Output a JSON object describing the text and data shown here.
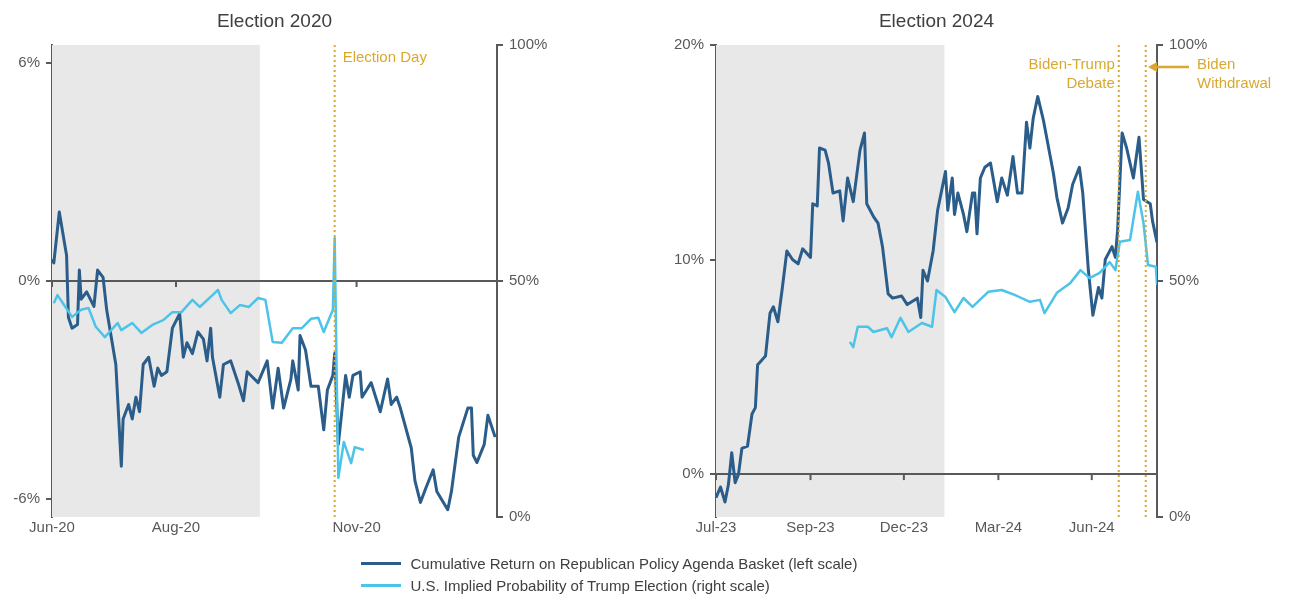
{
  "chart_data": [
    {
      "type": "line",
      "title": "Election 2020",
      "legend": "bottom",
      "marker": "none",
      "line_style": "solid",
      "xlim": [
        "2020-06-01",
        "2021-01-31"
      ],
      "xticks": [
        {
          "value": "2020-06-01",
          "label": "Jun-20"
        },
        {
          "value": "2020-08-08",
          "label": "Aug-20"
        },
        {
          "value": "2020-11-15",
          "label": "Nov-20"
        }
      ],
      "ylim": [
        -6.5,
        6.5
      ],
      "yticks": [
        {
          "value": -6,
          "label": "-6%"
        },
        {
          "value": 0,
          "label": "0%"
        },
        {
          "value": 6,
          "label": "6%"
        }
      ],
      "y2lim": [
        0,
        100
      ],
      "y2ticks": [
        {
          "value": 0,
          "label": "0%"
        },
        {
          "value": 50,
          "label": "50%"
        },
        {
          "value": 100,
          "label": "100%"
        }
      ],
      "bands": [
        {
          "axis": "x",
          "from": "2020-06-01",
          "to": "2020-09-23",
          "color": "#e8e8e8"
        }
      ],
      "ref_lines": [
        {
          "axis": "x",
          "value": "2020-11-03",
          "label": "Election Day",
          "color": "#d9a830",
          "line_style": "dotted"
        }
      ],
      "series": [
        {
          "name": "Cumulative Return on Republican Policy Agenda Basket (left scale)",
          "color": "#2b5d8a",
          "axis": "y",
          "x": [
            "2020-06-01",
            "2020-06-02",
            "2020-06-05",
            "2020-06-09",
            "2020-06-10",
            "2020-06-12",
            "2020-06-15",
            "2020-06-16",
            "2020-06-17",
            "2020-06-20",
            "2020-06-24",
            "2020-06-26",
            "2020-06-29",
            "2020-07-01",
            "2020-07-06",
            "2020-07-09",
            "2020-07-10",
            "2020-07-13",
            "2020-07-15",
            "2020-07-17",
            "2020-07-19",
            "2020-07-21",
            "2020-07-24",
            "2020-07-27",
            "2020-07-29",
            "2020-07-31",
            "2020-08-03",
            "2020-08-06",
            "2020-08-10",
            "2020-08-12",
            "2020-08-14",
            "2020-08-17",
            "2020-08-20",
            "2020-08-23",
            "2020-08-25",
            "2020-08-27",
            "2020-08-28",
            "2020-09-01",
            "2020-09-03",
            "2020-09-07",
            "2020-09-11",
            "2020-09-14",
            "2020-09-16",
            "2020-09-22",
            "2020-09-27",
            "2020-09-30",
            "2020-10-03",
            "2020-10-06",
            "2020-10-10",
            "2020-10-11",
            "2020-10-14",
            "2020-10-15",
            "2020-10-18",
            "2020-10-21",
            "2020-10-25",
            "2020-10-28",
            "2020-10-30",
            "2020-11-02",
            "2020-11-03",
            "2020-11-05",
            "2020-11-09",
            "2020-11-11",
            "2020-11-13",
            "2020-11-17",
            "2020-11-18",
            "2020-11-23",
            "2020-11-28",
            "2020-12-02",
            "2020-12-04",
            "2020-12-07",
            "2020-12-09",
            "2020-12-15",
            "2020-12-17",
            "2020-12-20",
            "2020-12-23",
            "2020-12-27",
            "2020-12-29",
            "2021-01-04",
            "2021-01-06",
            "2021-01-10",
            "2021-01-15",
            "2021-01-17",
            "2021-01-18",
            "2021-01-20",
            "2021-01-24",
            "2021-01-26",
            "2021-01-30"
          ],
          "values": [
            0.6,
            0.5,
            1.9,
            0.7,
            -1.0,
            -1.3,
            -1.2,
            0.3,
            -0.5,
            -0.3,
            -0.7,
            0.3,
            0.1,
            -0.8,
            -2.3,
            -5.1,
            -3.8,
            -3.4,
            -3.8,
            -3.2,
            -3.6,
            -2.3,
            -2.1,
            -2.9,
            -2.4,
            -2.6,
            -2.5,
            -1.3,
            -0.9,
            -2.1,
            -1.7,
            -2.0,
            -1.4,
            -1.6,
            -2.2,
            -1.3,
            -2.1,
            -3.2,
            -2.3,
            -2.2,
            -2.8,
            -3.3,
            -2.5,
            -2.8,
            -2.2,
            -3.5,
            -2.4,
            -3.5,
            -2.7,
            -2.2,
            -3.0,
            -1.5,
            -1.9,
            -2.9,
            -2.9,
            -4.1,
            -3.0,
            -2.6,
            -2.0,
            -4.5,
            -2.6,
            -3.2,
            -2.6,
            -2.5,
            -3.2,
            -2.8,
            -3.6,
            -2.7,
            -3.4,
            -3.2,
            -3.5,
            -4.6,
            -5.5,
            -6.1,
            -5.7,
            -5.2,
            -5.8,
            -6.3,
            -5.8,
            -4.3,
            -3.5,
            -3.5,
            -4.8,
            -5.0,
            -4.5,
            -3.7,
            -4.3
          ]
        },
        {
          "name": "U.S. Implied Probability of Trump Election (right scale)",
          "color": "#4cc3e8",
          "axis": "y2",
          "x": [
            "2020-06-02",
            "2020-06-04",
            "2020-06-07",
            "2020-06-12",
            "2020-06-17",
            "2020-06-21",
            "2020-06-25",
            "2020-06-30",
            "2020-07-07",
            "2020-07-09",
            "2020-07-15",
            "2020-07-20",
            "2020-07-26",
            "2020-08-01",
            "2020-08-06",
            "2020-08-11",
            "2020-08-17",
            "2020-08-21",
            "2020-08-28",
            "2020-08-31",
            "2020-09-02",
            "2020-09-07",
            "2020-09-12",
            "2020-09-17",
            "2020-09-22",
            "2020-09-26",
            "2020-09-30",
            "2020-10-05",
            "2020-10-11",
            "2020-10-16",
            "2020-10-21",
            "2020-10-25",
            "2020-10-28",
            "2020-11-02",
            "2020-11-03",
            "2020-11-04",
            "2020-11-05",
            "2020-11-08",
            "2020-11-12",
            "2020-11-14",
            "2020-11-19"
          ],
          "values": [
            45.3,
            47.0,
            45.3,
            42.4,
            43.9,
            44.3,
            40.3,
            38.1,
            41.1,
            39.6,
            41.1,
            39.0,
            40.7,
            41.7,
            43.4,
            43.4,
            46.0,
            44.5,
            47.0,
            48.1,
            46.0,
            43.2,
            44.9,
            44.5,
            46.4,
            46.0,
            37.1,
            36.9,
            40.0,
            40.0,
            42.0,
            42.2,
            39.2,
            43.9,
            59.1,
            32.6,
            8.3,
            15.9,
            11.4,
            14.8,
            14.2
          ]
        }
      ]
    },
    {
      "type": "line",
      "title": "Election 2024",
      "marker": "none",
      "line_style": "solid",
      "xlim": [
        "2023-07-05",
        "2024-07-31"
      ],
      "xticks": [
        {
          "value": "2023-07-05",
          "label": "Jul-23"
        },
        {
          "value": "2023-09-27",
          "label": "Sep-23"
        },
        {
          "value": "2023-12-19",
          "label": "Dec-23"
        },
        {
          "value": "2024-03-12",
          "label": "Mar-24"
        },
        {
          "value": "2024-06-03",
          "label": "Jun-24"
        }
      ],
      "ylim": [
        -2,
        20
      ],
      "yticks": [
        {
          "value": 0,
          "label": "0%"
        },
        {
          "value": 10,
          "label": "10%"
        },
        {
          "value": 20,
          "label": "20%"
        }
      ],
      "y2lim": [
        0,
        100
      ],
      "y2ticks": [
        {
          "value": 0,
          "label": "0%"
        },
        {
          "value": 50,
          "label": "50%"
        },
        {
          "value": 100,
          "label": "100%"
        }
      ],
      "bands": [
        {
          "axis": "x",
          "from": "2023-07-05",
          "to": "2024-01-24",
          "color": "#e8e8e8"
        }
      ],
      "ref_lines": [
        {
          "axis": "x",
          "value": "2024-06-27",
          "label": "Biden-Trump Debate",
          "color": "#d9a830",
          "line_style": "dotted"
        },
        {
          "axis": "x",
          "value": "2024-07-21",
          "label": "Biden Withdrawal",
          "color": "#d9a830",
          "line_style": "dotted"
        }
      ],
      "series": [
        {
          "color": "#2b5d8a",
          "axis": "y",
          "x": [
            "2023-07-05",
            "2023-07-09",
            "2023-07-13",
            "2023-07-16",
            "2023-07-19",
            "2023-07-22",
            "2023-07-25",
            "2023-07-28",
            "2023-08-02",
            "2023-08-06",
            "2023-08-09",
            "2023-08-11",
            "2023-08-18",
            "2023-08-22",
            "2023-08-25",
            "2023-08-29",
            "2023-09-02",
            "2023-09-06",
            "2023-09-11",
            "2023-09-16",
            "2023-09-20",
            "2023-09-27",
            "2023-09-29",
            "2023-10-03",
            "2023-10-05",
            "2023-10-10",
            "2023-10-13",
            "2023-10-17",
            "2023-10-23",
            "2023-10-26",
            "2023-10-30",
            "2023-11-04",
            "2023-11-10",
            "2023-11-14",
            "2023-11-16",
            "2023-11-22",
            "2023-11-26",
            "2023-11-30",
            "2023-12-05",
            "2023-12-09",
            "2023-12-17",
            "2023-12-22",
            "2023-12-31",
            "2024-01-03",
            "2024-01-05",
            "2024-01-09",
            "2024-01-14",
            "2024-01-18",
            "2024-01-25",
            "2024-01-27",
            "2024-01-31",
            "2024-02-02",
            "2024-02-05",
            "2024-02-10",
            "2024-02-13",
            "2024-02-18",
            "2024-02-20",
            "2024-02-22",
            "2024-02-25",
            "2024-02-29",
            "2024-03-05",
            "2024-03-11",
            "2024-03-15",
            "2024-03-20",
            "2024-03-25",
            "2024-03-29",
            "2024-04-02",
            "2024-04-06",
            "2024-04-09",
            "2024-04-12",
            "2024-04-16",
            "2024-04-21",
            "2024-04-30",
            "2024-05-03",
            "2024-05-08",
            "2024-05-13",
            "2024-05-17",
            "2024-05-23",
            "2024-05-26",
            "2024-05-31",
            "2024-06-04",
            "2024-06-09",
            "2024-06-12",
            "2024-06-15",
            "2024-06-21",
            "2024-06-24",
            "2024-06-26",
            "2024-06-30",
            "2024-07-04",
            "2024-07-10",
            "2024-07-15",
            "2024-07-19",
            "2024-07-25",
            "2024-07-27",
            "2024-07-31"
          ],
          "values": [
            -1.1,
            -0.6,
            -1.3,
            -0.5,
            1.0,
            -0.4,
            0.0,
            1.2,
            1.3,
            2.8,
            3.1,
            5.1,
            5.5,
            7.5,
            7.8,
            7.1,
            8.7,
            10.4,
            10.0,
            9.8,
            10.5,
            10.1,
            12.6,
            12.5,
            15.2,
            15.1,
            14.5,
            13.1,
            13.2,
            11.8,
            13.8,
            12.7,
            15.1,
            15.9,
            12.6,
            12.0,
            11.7,
            10.6,
            8.4,
            8.2,
            8.3,
            7.9,
            8.2,
            7.3,
            9.5,
            9.0,
            10.4,
            12.3,
            14.1,
            12.3,
            13.8,
            12.1,
            13.1,
            12.1,
            11.3,
            13.1,
            13.1,
            11.2,
            13.8,
            14.3,
            14.5,
            12.7,
            13.8,
            13.0,
            14.8,
            13.1,
            13.1,
            16.4,
            15.2,
            16.6,
            17.6,
            16.5,
            14.0,
            12.9,
            11.7,
            12.4,
            13.5,
            14.3,
            13.1,
            9.5,
            7.4,
            8.7,
            8.2,
            10.0,
            10.6,
            10.1,
            11.4,
            15.9,
            15.2,
            13.8,
            15.7,
            12.8,
            12.6,
            11.8,
            10.8
          ]
        },
        {
          "color": "#4cc3e8",
          "axis": "y2",
          "x": [
            "2023-11-01",
            "2023-11-04",
            "2023-11-08",
            "2023-11-17",
            "2023-11-22",
            "2023-12-04",
            "2023-12-08",
            "2023-12-16",
            "2023-12-23",
            "2024-01-04",
            "2024-01-13",
            "2024-01-17",
            "2024-01-25",
            "2024-02-02",
            "2024-02-10",
            "2024-02-18",
            "2024-03-03",
            "2024-03-15",
            "2024-03-27",
            "2024-04-09",
            "2024-04-18",
            "2024-04-22",
            "2024-05-03",
            "2024-05-15",
            "2024-05-24",
            "2024-06-01",
            "2024-06-10",
            "2024-06-19",
            "2024-06-24",
            "2024-06-28",
            "2024-07-07",
            "2024-07-14",
            "2024-07-19",
            "2024-07-23",
            "2024-07-30",
            "2024-07-31"
          ],
          "values": [
            37.1,
            36.0,
            40.3,
            40.3,
            39.2,
            40.0,
            38.1,
            42.2,
            39.2,
            41.1,
            40.3,
            48.1,
            46.6,
            43.4,
            46.4,
            44.5,
            47.7,
            48.1,
            47.0,
            45.6,
            46.0,
            43.2,
            47.5,
            49.6,
            52.3,
            50.6,
            51.7,
            54.0,
            52.3,
            58.3,
            58.7,
            68.9,
            62.3,
            53.4,
            53.0,
            49.2
          ]
        }
      ]
    }
  ]
}
